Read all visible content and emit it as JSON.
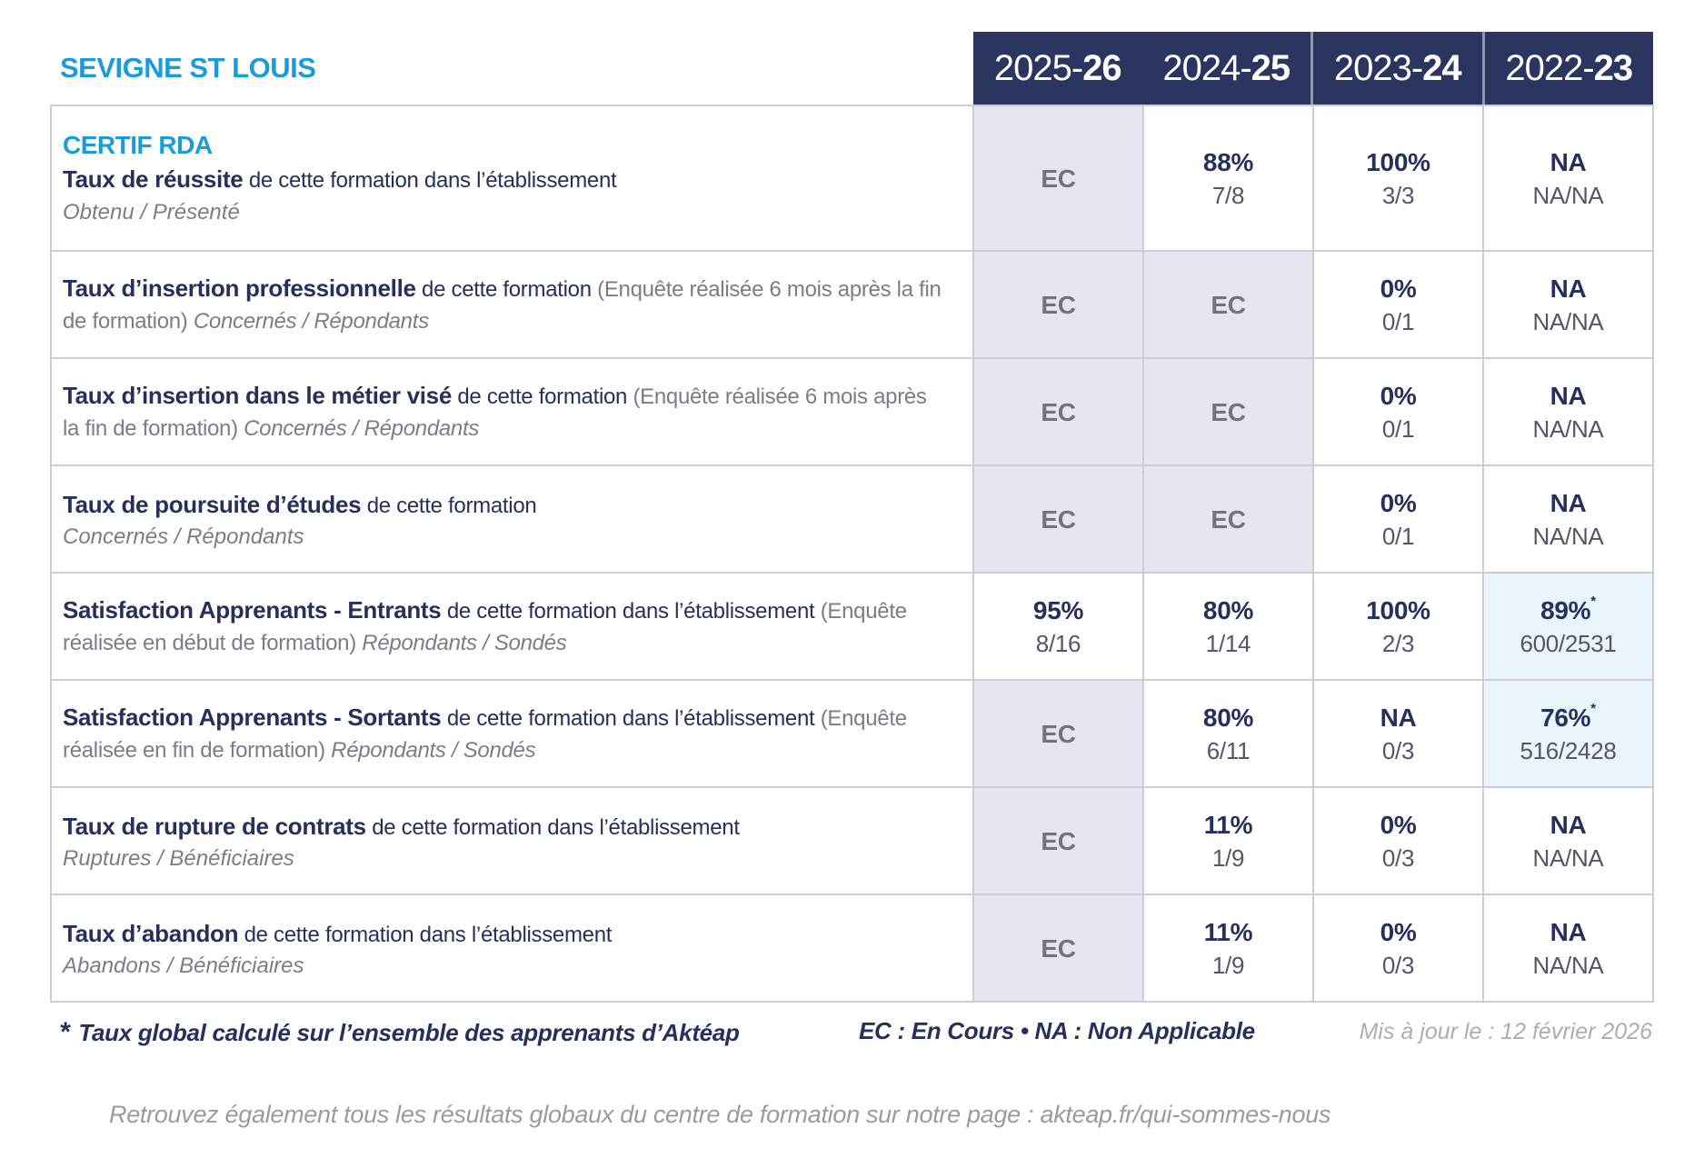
{
  "page": {
    "school_name": "SEVIGNE ST LOUIS"
  },
  "columns": [
    {
      "prefix": "2025-",
      "bold": "26"
    },
    {
      "prefix": "2024-",
      "bold": "25"
    },
    {
      "prefix": "2023-",
      "bold": "24"
    },
    {
      "prefix": "2022-",
      "bold": "23"
    }
  ],
  "rows": [
    {
      "program": "CERTIF RDA",
      "title": "Taux de réussite",
      "desc": "de cette formation dans l’établissement",
      "paren": "",
      "legend": "Obtenu / Présenté",
      "legend_block": true,
      "values": [
        {
          "type": "ec",
          "main": "EC"
        },
        {
          "type": "value",
          "main": "88%",
          "sub": "7/8"
        },
        {
          "type": "value",
          "main": "100%",
          "sub": "3/3"
        },
        {
          "type": "value",
          "main": "NA",
          "sub": "NA/NA"
        }
      ]
    },
    {
      "title": "Taux d’insertion professionnelle",
      "desc": "de cette formation",
      "paren": "(Enquête réalisée 6 mois après la fin de formation)",
      "legend": "Concernés / Répondants",
      "legend_block": false,
      "values": [
        {
          "type": "ec",
          "main": "EC"
        },
        {
          "type": "ec",
          "main": "EC"
        },
        {
          "type": "value",
          "main": "0%",
          "sub": "0/1"
        },
        {
          "type": "value",
          "main": "NA",
          "sub": "NA/NA"
        }
      ]
    },
    {
      "title": "Taux d’insertion dans le métier visé",
      "desc": "de cette formation",
      "paren": "(Enquête réalisée 6 mois après la fin de formation)",
      "legend": "Concernés / Répondants",
      "legend_block": false,
      "values": [
        {
          "type": "ec",
          "main": "EC"
        },
        {
          "type": "ec",
          "main": "EC"
        },
        {
          "type": "value",
          "main": "0%",
          "sub": "0/1"
        },
        {
          "type": "value",
          "main": "NA",
          "sub": "NA/NA"
        }
      ]
    },
    {
      "title": "Taux de poursuite d’études",
      "desc": "de cette formation",
      "paren": "",
      "legend": "Concernés / Répondants",
      "legend_block": true,
      "values": [
        {
          "type": "ec",
          "main": "EC"
        },
        {
          "type": "ec",
          "main": "EC"
        },
        {
          "type": "value",
          "main": "0%",
          "sub": "0/1"
        },
        {
          "type": "value",
          "main": "NA",
          "sub": "NA/NA"
        }
      ]
    },
    {
      "title": "Satisfaction Apprenants - Entrants",
      "desc": "de cette formation dans l’établissement",
      "paren": "(Enquête réalisée en début de formation)",
      "legend": "Répondants / Sondés",
      "legend_block": false,
      "values": [
        {
          "type": "value",
          "main": "95%",
          "sub": "8/16"
        },
        {
          "type": "value",
          "main": "80%",
          "sub": "1/14"
        },
        {
          "type": "value",
          "main": "100%",
          "sub": "2/3"
        },
        {
          "type": "value",
          "main": "89%",
          "sup": "*",
          "sub": "600/2531",
          "highlight": true
        }
      ]
    },
    {
      "title": "Satisfaction Apprenants - Sortants",
      "desc": "de cette formation dans l’établissement",
      "paren": "(Enquête réalisée en fin de formation)",
      "legend": "Répondants / Sondés",
      "legend_block": false,
      "values": [
        {
          "type": "ec",
          "main": "EC"
        },
        {
          "type": "value",
          "main": "80%",
          "sub": "6/11"
        },
        {
          "type": "value",
          "main": "NA",
          "sub": "0/3"
        },
        {
          "type": "value",
          "main": "76%",
          "sup": "*",
          "sub": "516/2428",
          "highlight": true
        }
      ]
    },
    {
      "title": "Taux de rupture de contrats",
      "desc": "de cette formation dans l’établissement",
      "paren": "",
      "legend": "Ruptures / Bénéficiaires",
      "legend_block": true,
      "values": [
        {
          "type": "ec",
          "main": "EC"
        },
        {
          "type": "value",
          "main": "11%",
          "sub": "1/9"
        },
        {
          "type": "value",
          "main": "0%",
          "sub": "0/3"
        },
        {
          "type": "value",
          "main": "NA",
          "sub": "NA/NA"
        }
      ]
    },
    {
      "title": "Taux d’abandon",
      "desc": "de cette formation dans l’établissement",
      "paren": "",
      "legend": "Abandons / Bénéficiaires",
      "legend_block": true,
      "values": [
        {
          "type": "ec",
          "main": "EC"
        },
        {
          "type": "value",
          "main": "11%",
          "sub": "1/9"
        },
        {
          "type": "value",
          "main": "0%",
          "sub": "0/3"
        },
        {
          "type": "value",
          "main": "NA",
          "sub": "NA/NA"
        }
      ]
    }
  ],
  "footer": {
    "star": "*",
    "note": "Taux global calculé sur l’ensemble des apprenants d’Aktéap",
    "legend": "EC : En Cours  •  NA : Non Applicable",
    "updated": "Mis à jour le : 12 février 2026"
  },
  "bottom_note": "Retrouvez également tous les résultats globaux du centre de formation sur notre page : akteap.fr/qui-sommes-nous",
  "colors": {
    "accent_cyan": "#1B9CD9",
    "navy": "#2B355F",
    "text_navy": "#26305C",
    "text_gray": "#7C7C89",
    "ec_cell_bg": "#E6E5EF",
    "highlight_cell_bg": "#EAF4FB",
    "border": "#CCCBD6"
  }
}
